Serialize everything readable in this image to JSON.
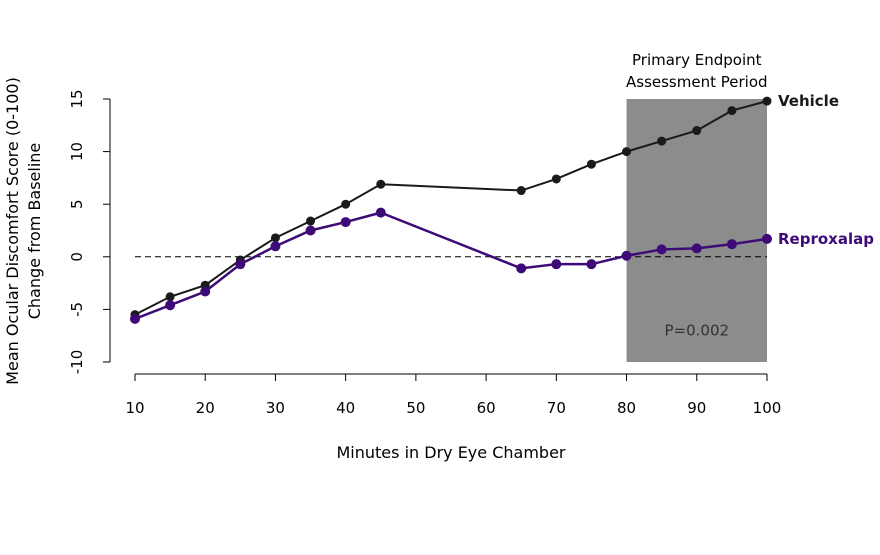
{
  "chart_data": {
    "type": "line",
    "xlabel": "Minutes in Dry Eye Chamber",
    "ylabel_lines": [
      "Mean Ocular Discomfort Score (0-100)",
      "Change from Baseline"
    ],
    "xlim": [
      10,
      100
    ],
    "ylim": [
      -10,
      15
    ],
    "x_ticks": [
      10,
      20,
      30,
      40,
      50,
      60,
      70,
      80,
      90,
      100
    ],
    "y_ticks": [
      -10,
      -5,
      0,
      5,
      10,
      15
    ],
    "reference_line": {
      "y": 0,
      "style": "dashed"
    },
    "shaded_region": {
      "x_start": 80,
      "x_end": 100,
      "color": "#8c8c8c",
      "label_lines": [
        "Primary Endpoint",
        "Assessment Period"
      ],
      "annotation": "P=0.002"
    },
    "series": [
      {
        "name": "Vehicle",
        "color": "#1a1a1a",
        "x": [
          10,
          15,
          20,
          25,
          30,
          35,
          40,
          45,
          65,
          70,
          75,
          80,
          85,
          90,
          95,
          100
        ],
        "values": [
          -5.5,
          -3.8,
          -2.7,
          -0.3,
          1.8,
          3.4,
          5.0,
          6.9,
          6.3,
          7.4,
          8.8,
          10.0,
          11.0,
          12.0,
          13.9,
          14.8
        ]
      },
      {
        "name": "Reproxalap",
        "color": "#3d0a78",
        "x": [
          10,
          15,
          20,
          25,
          30,
          35,
          40,
          45,
          65,
          70,
          75,
          80,
          85,
          90,
          95,
          100
        ],
        "values": [
          -5.9,
          -4.6,
          -3.3,
          -0.7,
          1.0,
          2.5,
          3.3,
          4.2,
          -1.1,
          -0.7,
          -0.7,
          0.1,
          0.7,
          0.8,
          1.2,
          1.7
        ]
      }
    ]
  }
}
